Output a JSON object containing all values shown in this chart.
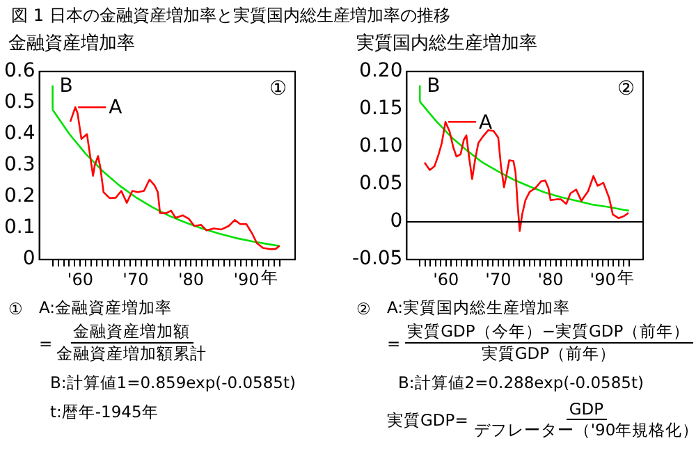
{
  "chart_data": [
    {
      "type": "line",
      "title": "図 1 日本の金融資産増加率と実質国内総生産増加率の推移",
      "ylabel": "金融資産増加率",
      "xlabel": "年",
      "marker": "none",
      "legend": "top left",
      "grid": false,
      "xlim": [
        1952.6,
        1998.8
      ],
      "ylim": [
        0,
        0.6
      ],
      "yticks": [
        0,
        0.1,
        0.2,
        0.3,
        0.4,
        0.5,
        0.6
      ],
      "xticks": [
        {
          "value": 1955,
          "label": null
        },
        {
          "value": 1956,
          "label": null
        },
        {
          "value": 1957,
          "label": null
        },
        {
          "value": 1958,
          "label": null
        },
        {
          "value": 1959,
          "label": null
        },
        {
          "value": 1960,
          "label": "'60"
        },
        {
          "value": 1961,
          "label": null
        },
        {
          "value": 1962,
          "label": null
        },
        {
          "value": 1963,
          "label": null
        },
        {
          "value": 1964,
          "label": null
        },
        {
          "value": 1965,
          "label": null
        },
        {
          "value": 1966,
          "label": null
        },
        {
          "value": 1967,
          "label": null
        },
        {
          "value": 1968,
          "label": null
        },
        {
          "value": 1969,
          "label": null
        },
        {
          "value": 1970,
          "label": "'70"
        },
        {
          "value": 1971,
          "label": null
        },
        {
          "value": 1972,
          "label": null
        },
        {
          "value": 1973,
          "label": null
        },
        {
          "value": 1974,
          "label": null
        },
        {
          "value": 1975,
          "label": null
        },
        {
          "value": 1976,
          "label": null
        },
        {
          "value": 1977,
          "label": null
        },
        {
          "value": 1978,
          "label": null
        },
        {
          "value": 1979,
          "label": null
        },
        {
          "value": 1980,
          "label": "'80"
        },
        {
          "value": 1981,
          "label": null
        },
        {
          "value": 1982,
          "label": null
        },
        {
          "value": 1983,
          "label": null
        },
        {
          "value": 1984,
          "label": null
        },
        {
          "value": 1985,
          "label": null
        },
        {
          "value": 1986,
          "label": null
        },
        {
          "value": 1987,
          "label": null
        },
        {
          "value": 1988,
          "label": null
        },
        {
          "value": 1989,
          "label": null
        },
        {
          "value": 1990,
          "label": "'90"
        },
        {
          "value": 1991,
          "label": null
        },
        {
          "value": 1992,
          "label": null
        },
        {
          "value": 1993,
          "label": null
        },
        {
          "value": 1994,
          "label": null
        },
        {
          "value": 1995,
          "label": null
        },
        {
          "value": 1996,
          "label": null
        }
      ],
      "series": [
        {
          "name": "A",
          "color": "#ff0000",
          "x": [
            1958.2,
            1959.1,
            1959.5,
            1960.2,
            1961.2,
            1961.7,
            1962.3,
            1962.6,
            1963.2,
            1963.6,
            1964.2,
            1965.3,
            1966.4,
            1967.4,
            1968.4,
            1969.4,
            1970.4,
            1971.5,
            1972.5,
            1973.4,
            1974.0,
            1974.4,
            1975.5,
            1976.4,
            1977.2,
            1978.5,
            1979.6,
            1980.6,
            1981.8,
            1982.8,
            1984.1,
            1985.5,
            1986.8,
            1987.9,
            1988.9,
            1990.0,
            1991.1,
            1991.9,
            1993.0,
            1994.3,
            1995.3,
            1996.0
          ],
          "values": [
            0.44,
            0.486,
            0.467,
            0.385,
            0.4,
            0.34,
            0.267,
            0.3,
            0.33,
            0.296,
            0.215,
            0.196,
            0.197,
            0.219,
            0.181,
            0.219,
            0.215,
            0.219,
            0.255,
            0.237,
            0.215,
            0.148,
            0.148,
            0.156,
            0.133,
            0.141,
            0.13,
            0.107,
            0.111,
            0.093,
            0.099,
            0.096,
            0.107,
            0.126,
            0.113,
            0.113,
            0.081,
            0.052,
            0.037,
            0.033,
            0.034,
            0.044
          ]
        },
        {
          "name": "B",
          "color": "#00e000",
          "x": [
            1955,
            1958,
            1961,
            1964,
            1967,
            1970,
            1973,
            1976,
            1979,
            1982,
            1985,
            1988,
            1991,
            1994,
            1996
          ],
          "values": [
            0.478,
            0.401,
            0.337,
            0.283,
            0.237,
            0.199,
            0.167,
            0.14,
            0.118,
            0.099,
            0.083,
            0.069,
            0.058,
            0.049,
            0.043
          ]
        }
      ],
      "annotations": [
        "①",
        "①",
        "A:金融資産増加率",
        "=",
        "金融資産増加額",
        "金融資産増加額累計",
        "B:計算値1=0.859exp(-0.0585t)",
        "t:暦年-1945年"
      ]
    },
    {
      "type": "line",
      "ylabel": "実質国内総生産増加率",
      "xlabel": "年",
      "marker": "none",
      "legend": "top left",
      "grid": false,
      "xlim": [
        1952.5,
        1997.7
      ],
      "ylim": [
        -0.05,
        0.2
      ],
      "yticks": [
        -0.05,
        0,
        0.05,
        {
          "value": 0.1,
          "label": "0.10"
        },
        0.15,
        {
          "value": 0.2,
          "label": "0.20"
        }
      ],
      "xticks": [
        {
          "value": 1955,
          "label": null
        },
        {
          "value": 1956,
          "label": null
        },
        {
          "value": 1957,
          "label": null
        },
        {
          "value": 1958,
          "label": null
        },
        {
          "value": 1959,
          "label": null
        },
        {
          "value": 1960,
          "label": "'60"
        },
        {
          "value": 1961,
          "label": null
        },
        {
          "value": 1962,
          "label": null
        },
        {
          "value": 1963,
          "label": null
        },
        {
          "value": 1964,
          "label": null
        },
        {
          "value": 1965,
          "label": null
        },
        {
          "value": 1966,
          "label": null
        },
        {
          "value": 1967,
          "label": null
        },
        {
          "value": 1968,
          "label": null
        },
        {
          "value": 1969,
          "label": null
        },
        {
          "value": 1970,
          "label": "'70"
        },
        {
          "value": 1971,
          "label": null
        },
        {
          "value": 1972,
          "label": null
        },
        {
          "value": 1973,
          "label": null
        },
        {
          "value": 1974,
          "label": null
        },
        {
          "value": 1975,
          "label": null
        },
        {
          "value": 1976,
          "label": null
        },
        {
          "value": 1977,
          "label": null
        },
        {
          "value": 1978,
          "label": null
        },
        {
          "value": 1979,
          "label": null
        },
        {
          "value": 1980,
          "label": "'80"
        },
        {
          "value": 1981,
          "label": null
        },
        {
          "value": 1982,
          "label": null
        },
        {
          "value": 1983,
          "label": null
        },
        {
          "value": 1984,
          "label": null
        },
        {
          "value": 1985,
          "label": null
        },
        {
          "value": 1986,
          "label": null
        },
        {
          "value": 1987,
          "label": null
        },
        {
          "value": 1988,
          "label": null
        },
        {
          "value": 1989,
          "label": null
        },
        {
          "value": 1990,
          "label": "'90"
        },
        {
          "value": 1991,
          "label": null
        },
        {
          "value": 1992,
          "label": null
        },
        {
          "value": 1993,
          "label": null
        },
        {
          "value": 1994,
          "label": null
        },
        {
          "value": 1995,
          "label": null
        }
      ],
      "ref_lines": [
        {
          "axis": "y",
          "value": 0,
          "color": "#000000"
        }
      ],
      "series": [
        {
          "name": "A",
          "color": "#ff0000",
          "x": [
            1955.9,
            1956.9,
            1957.8,
            1958.6,
            1959.2,
            1959.9,
            1960.7,
            1961.4,
            1962.0,
            1962.8,
            1963.4,
            1963.9,
            1964.4,
            1965.0,
            1965.6,
            1966.2,
            1967.0,
            1968.1,
            1969.1,
            1970.0,
            1970.5,
            1971.1,
            1971.5,
            1972.1,
            1972.9,
            1973.3,
            1973.7,
            1974.1,
            1974.6,
            1975.2,
            1976.0,
            1977.1,
            1978.2,
            1979.0,
            1979.6,
            1980.0,
            1981.1,
            1982.0,
            1983.0,
            1983.8,
            1984.9,
            1985.9,
            1987.2,
            1988.2,
            1989.0,
            1990.1,
            1991.2,
            1991.9,
            1993.0,
            1994.1,
            1994.9
          ],
          "values": [
            0.079,
            0.069,
            0.074,
            0.09,
            0.105,
            0.133,
            0.12,
            0.099,
            0.087,
            0.09,
            0.109,
            0.115,
            0.087,
            0.057,
            0.084,
            0.105,
            0.113,
            0.122,
            0.121,
            0.112,
            0.075,
            0.046,
            0.06,
            0.082,
            0.081,
            0.066,
            0.023,
            -0.012,
            0.011,
            0.029,
            0.04,
            0.045,
            0.054,
            0.055,
            0.045,
            0.029,
            0.03,
            0.03,
            0.024,
            0.038,
            0.043,
            0.028,
            0.041,
            0.061,
            0.048,
            0.052,
            0.032,
            0.01,
            0.005,
            0.008,
            0.012
          ]
        },
        {
          "name": "B",
          "color": "#00e000",
          "x": [
            1955,
            1958,
            1961,
            1964,
            1967,
            1970,
            1973,
            1976,
            1979,
            1982,
            1985,
            1988,
            1991,
            1994,
            1995
          ],
          "values": [
            0.16,
            0.135,
            0.113,
            0.095,
            0.079,
            0.067,
            0.056,
            0.047,
            0.039,
            0.033,
            0.028,
            0.023,
            0.02,
            0.016,
            0.015
          ]
        }
      ],
      "annotations": [
        "②",
        "②",
        "A:実質国内総生産増加率",
        "=",
        "実質GDP（今年）−実質GDP（前年）",
        "実質GDP（前年）",
        "B:計算値2=0.288exp(-0.0585t)",
        "実質GDP=",
        "GDP",
        "デフレーター（'90年規格化）"
      ]
    }
  ]
}
